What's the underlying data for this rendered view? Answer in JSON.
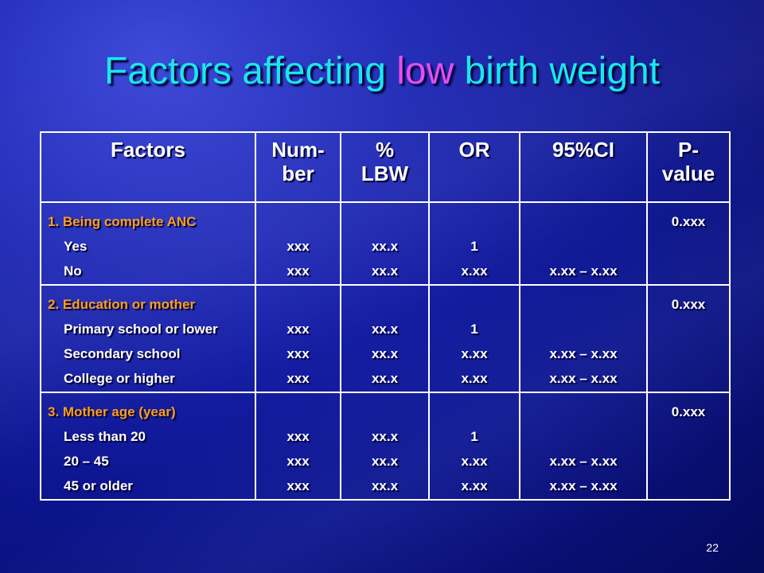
{
  "slide": {
    "title_part1": "Factors affecting ",
    "title_highlight": "low",
    "title_part2": " birth weight",
    "page_number": "22"
  },
  "table": {
    "headers": [
      "Factors",
      "Num-ber",
      "% LBW",
      "OR",
      "95%CI",
      "P-value"
    ],
    "header_lines": [
      [
        "Factors"
      ],
      [
        "Num-",
        "ber"
      ],
      [
        "%",
        "LBW"
      ],
      [
        "OR"
      ],
      [
        "95%CI"
      ],
      [
        "P-",
        "value"
      ]
    ],
    "sections": [
      {
        "title": "1. Being complete ANC",
        "rows": [
          {
            "label": "Yes",
            "number": "xxx",
            "lbw": "xx.x",
            "or": "1",
            "ci": ""
          },
          {
            "label": "No",
            "number": "xxx",
            "lbw": "xx.x",
            "or": "x.xx",
            "ci": "x.xx – x.xx"
          }
        ],
        "p_value": "0.xxx"
      },
      {
        "title": "2. Education or mother",
        "rows": [
          {
            "label": "Primary school or lower",
            "number": "xxx",
            "lbw": "xx.x",
            "or": "1",
            "ci": ""
          },
          {
            "label": "Secondary school",
            "number": "xxx",
            "lbw": "xx.x",
            "or": "x.xx",
            "ci": "x.xx – x.xx"
          },
          {
            "label": "College or higher",
            "number": "xxx",
            "lbw": "xx.x",
            "or": "x.xx",
            "ci": "x.xx – x.xx"
          }
        ],
        "p_value": "0.xxx"
      },
      {
        "title": "3. Mother age (year)",
        "rows": [
          {
            "label": "Less than 20",
            "number": "xxx",
            "lbw": "xx.x",
            "or": "1",
            "ci": ""
          },
          {
            "label": "20 – 45",
            "number": "xxx",
            "lbw": "xx.x",
            "or": "x.xx",
            "ci": "x.xx – x.xx"
          },
          {
            "label": "45 or older",
            "number": "xxx",
            "lbw": "xx.x",
            "or": "x.xx",
            "ci": "x.xx – x.xx"
          }
        ],
        "p_value": "0.xxx"
      }
    ]
  },
  "colors": {
    "title": "#18e8ee",
    "title_highlight": "#e84bf0",
    "section_heading": "#ff9e1a",
    "background": "#1c26b4",
    "text": "#ffffff"
  }
}
